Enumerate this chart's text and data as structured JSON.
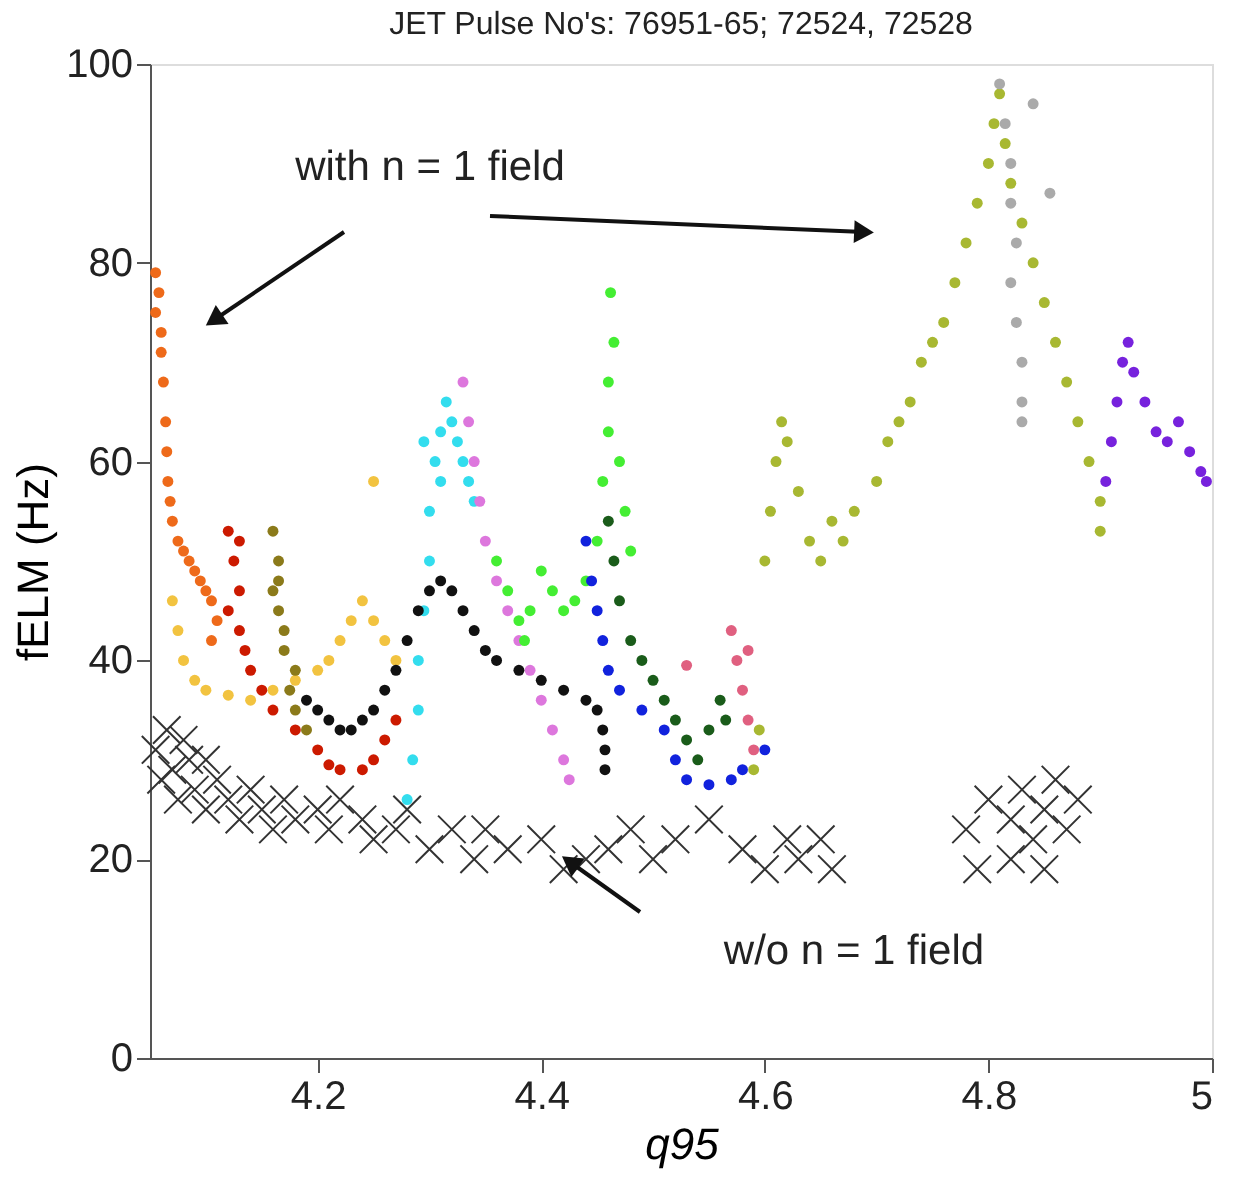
{
  "chart_data": {
    "type": "scatter",
    "title": "JET Pulse No's: 76951-65; 72524, 72528",
    "xlabel": "q95",
    "ylabel": "fELM (Hz)",
    "xlim": [
      4.05,
      5
    ],
    "ylim": [
      0,
      100
    ],
    "xticks": [
      4.2,
      4.4,
      4.6,
      4.8,
      5
    ],
    "yticks": [
      0,
      20,
      40,
      60,
      80,
      100
    ],
    "grid": false,
    "marker": "circle",
    "annotations": [
      "with n = 1 field",
      "w/o n = 1 field"
    ],
    "series": [
      {
        "color": "#ee6a1a",
        "x": [
          4.055,
          4.058,
          4.055,
          4.06,
          4.06,
          4.062,
          4.064,
          4.065,
          4.066,
          4.068,
          4.07,
          4.075,
          4.08,
          4.085,
          4.09,
          4.095,
          4.1,
          4.105,
          4.11,
          4.105
        ],
        "values": [
          79,
          77,
          75,
          73,
          71,
          68,
          64,
          61,
          58,
          56,
          54,
          52,
          51,
          50,
          49,
          48,
          47,
          46,
          44,
          42
        ]
      },
      {
        "color": "#f2c340",
        "x": [
          4.07,
          4.075,
          4.08,
          4.09,
          4.1,
          4.12,
          4.14,
          4.16,
          4.18,
          4.2,
          4.21,
          4.22,
          4.23,
          4.24,
          4.25,
          4.26,
          4.27,
          4.25
        ],
        "values": [
          46,
          43,
          40,
          38,
          37,
          36.5,
          36,
          37,
          38,
          39,
          40,
          42,
          44,
          46,
          44,
          42,
          40,
          58
        ]
      },
      {
        "color": "#cc1a00",
        "x": [
          4.12,
          4.13,
          4.125,
          4.13,
          4.12,
          4.13,
          4.135,
          4.14,
          4.15,
          4.16,
          4.18,
          4.2,
          4.21,
          4.22,
          4.24,
          4.25,
          4.26,
          4.27
        ],
        "values": [
          53,
          52,
          50,
          47,
          45,
          43,
          41,
          39,
          37,
          35,
          33,
          31,
          29.5,
          29,
          29,
          30,
          32,
          34
        ]
      },
      {
        "color": "#8b7a1a",
        "x": [
          4.16,
          4.165,
          4.165,
          4.16,
          4.165,
          4.17,
          4.17,
          4.18,
          4.175,
          4.18,
          4.19
        ],
        "values": [
          53,
          50,
          48,
          47,
          45,
          43,
          41,
          39,
          37,
          35,
          33
        ]
      },
      {
        "color": "#33ddee",
        "x": [
          4.28,
          4.285,
          4.29,
          4.29,
          4.295,
          4.3,
          4.3,
          4.305,
          4.31,
          4.315,
          4.32,
          4.325,
          4.33,
          4.335,
          4.34,
          4.31,
          4.295
        ],
        "values": [
          26,
          30,
          35,
          40,
          45,
          50,
          55,
          60,
          63,
          66,
          64,
          62,
          60,
          58,
          56,
          58,
          62
        ]
      },
      {
        "color": "#dd77dd",
        "x": [
          4.33,
          4.335,
          4.34,
          4.345,
          4.35,
          4.36,
          4.37,
          4.38,
          4.39,
          4.4,
          4.41,
          4.42,
          4.425
        ],
        "values": [
          68,
          64,
          60,
          56,
          52,
          48,
          45,
          42,
          39,
          36,
          33,
          30,
          28
        ]
      },
      {
        "color": "#111111",
        "x": [
          4.19,
          4.2,
          4.21,
          4.22,
          4.23,
          4.24,
          4.25,
          4.26,
          4.27,
          4.28,
          4.29,
          4.3,
          4.31,
          4.32,
          4.33,
          4.34,
          4.35,
          4.36,
          4.38,
          4.4,
          4.42,
          4.44,
          4.45,
          4.455,
          4.457,
          4.457
        ],
        "values": [
          36,
          35,
          34,
          33,
          33,
          34,
          35,
          37,
          39,
          42,
          45,
          47,
          48,
          47,
          45,
          43,
          41,
          40,
          39,
          38,
          37,
          36,
          35,
          33,
          31,
          29
        ]
      },
      {
        "color": "#44ee33",
        "x": [
          4.36,
          4.37,
          4.38,
          4.385,
          4.39,
          4.4,
          4.41,
          4.42,
          4.43,
          4.44,
          4.45,
          4.455,
          4.46,
          4.46,
          4.465,
          4.462,
          4.47,
          4.475,
          4.48
        ],
        "values": [
          50,
          47,
          44,
          42,
          45,
          49,
          47,
          45,
          46,
          48,
          52,
          58,
          63,
          68,
          72,
          77,
          60,
          55,
          51
        ]
      },
      {
        "color": "#1122dd",
        "x": [
          4.44,
          4.445,
          4.45,
          4.455,
          4.46,
          4.47,
          4.49,
          4.51,
          4.52,
          4.53,
          4.55,
          4.57,
          4.58,
          4.6
        ],
        "values": [
          52,
          48,
          45,
          42,
          39,
          37,
          35,
          33,
          30,
          28,
          27.5,
          28,
          29,
          31
        ]
      },
      {
        "color": "#1a5c1a",
        "x": [
          4.46,
          4.465,
          4.47,
          4.48,
          4.49,
          4.5,
          4.51,
          4.52,
          4.53,
          4.54,
          4.55,
          4.56,
          4.565
        ],
        "values": [
          54,
          50,
          46,
          42,
          40,
          38,
          36,
          34,
          32,
          30,
          33,
          36,
          34
        ]
      },
      {
        "color": "#e06080",
        "x": [
          4.57,
          4.575,
          4.58,
          4.585,
          4.59,
          4.585,
          4.53
        ],
        "values": [
          43,
          40,
          37,
          34,
          31,
          41,
          39.5
        ]
      },
      {
        "color": "#a8b832",
        "x": [
          4.59,
          4.595,
          4.6,
          4.605,
          4.61,
          4.615,
          4.62,
          4.63,
          4.64,
          4.65,
          4.66,
          4.67,
          4.68,
          4.7,
          4.71,
          4.72,
          4.73,
          4.74,
          4.75,
          4.76,
          4.77,
          4.78,
          4.79,
          4.8,
          4.805,
          4.81,
          4.815,
          4.82,
          4.83,
          4.84,
          4.85,
          4.86,
          4.87,
          4.88,
          4.89,
          4.9,
          4.9
        ],
        "values": [
          29,
          33,
          50,
          55,
          60,
          64,
          62,
          57,
          52,
          50,
          54,
          52,
          55,
          58,
          62,
          64,
          66,
          70,
          72,
          74,
          78,
          82,
          86,
          90,
          94,
          97,
          92,
          88,
          84,
          80,
          76,
          72,
          68,
          64,
          60,
          56,
          53
        ]
      },
      {
        "color": "#aaaaaa",
        "x": [
          4.81,
          4.815,
          4.82,
          4.82,
          4.825,
          4.82,
          4.825,
          4.83,
          4.83,
          4.83,
          4.855,
          4.84
        ],
        "values": [
          98,
          94,
          90,
          86,
          82,
          78,
          74,
          70,
          66,
          64,
          87,
          96
        ]
      },
      {
        "color": "#7722dd",
        "x": [
          4.905,
          4.91,
          4.915,
          4.92,
          4.925,
          4.93,
          4.94,
          4.95,
          4.96,
          4.97,
          4.98,
          4.99,
          4.995
        ],
        "values": [
          58,
          62,
          66,
          70,
          72,
          69,
          66,
          63,
          62,
          64,
          61,
          59,
          58
        ]
      },
      {
        "color": "#333333",
        "marker": "cross",
        "x": [
          4.055,
          4.06,
          4.065,
          4.07,
          4.075,
          4.08,
          4.085,
          4.09,
          4.1,
          4.1,
          4.11,
          4.12,
          4.13,
          4.14,
          4.15,
          4.16,
          4.17,
          4.18,
          4.2,
          4.21,
          4.22,
          4.24,
          4.25,
          4.27,
          4.28,
          4.3,
          4.32,
          4.34,
          4.35,
          4.37,
          4.4,
          4.42,
          4.44,
          4.46,
          4.48,
          4.5,
          4.52,
          4.55,
          4.58,
          4.6,
          4.62,
          4.63,
          4.65,
          4.66,
          4.78,
          4.79,
          4.8,
          4.82,
          4.83,
          4.84,
          4.85,
          4.86,
          4.87,
          4.88,
          4.82,
          4.85
        ],
        "values": [
          31,
          28,
          33,
          29,
          26,
          32,
          30,
          27,
          25,
          30,
          28,
          26,
          24,
          27,
          25,
          23,
          26,
          24,
          25,
          23,
          26,
          24,
          22,
          23,
          25,
          21,
          23,
          20,
          23,
          21,
          22,
          19,
          20,
          21,
          23,
          20,
          22,
          24,
          21,
          19,
          22,
          20,
          22,
          19,
          23,
          19,
          26,
          24,
          27,
          22,
          25,
          28,
          23,
          26,
          20,
          19
        ]
      }
    ]
  }
}
